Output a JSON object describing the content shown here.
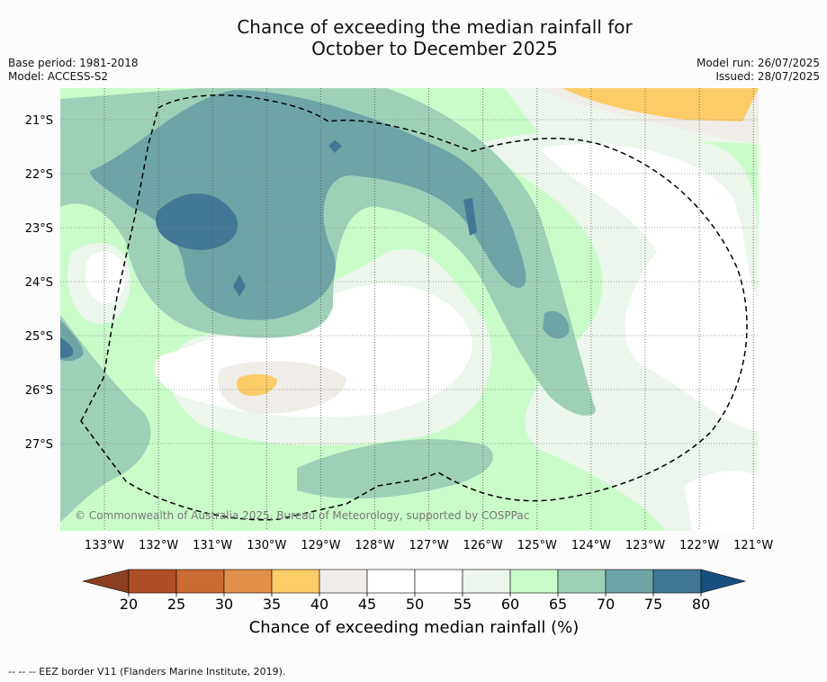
{
  "title": {
    "line1": "Chance of exceeding the median rainfall for",
    "line2": "October to December 2025"
  },
  "meta_left": {
    "base_period": "Base period: 1981-2018",
    "model": "Model: ACCESS-S2"
  },
  "meta_right": {
    "model_run": "Model run: 26/07/2025",
    "issued": "Issued: 28/07/2025"
  },
  "map": {
    "lat_labels": [
      "21°S",
      "22°S",
      "23°S",
      "24°S",
      "25°S",
      "26°S",
      "27°S"
    ],
    "lon_labels": [
      "133°W",
      "132°W",
      "131°W",
      "130°W",
      "129°W",
      "128°W",
      "127°W",
      "126°W",
      "125°W",
      "124°W",
      "123°W",
      "122°W",
      "121°W"
    ],
    "copyright": "© Commonwealth of Australia 2025, Bureau of Meteorology, supported by COSPPac",
    "background_color": "#c9fcc9"
  },
  "colorbar": {
    "ticks": [
      "20",
      "25",
      "30",
      "35",
      "40",
      "45",
      "50",
      "55",
      "60",
      "65",
      "70",
      "75",
      "80"
    ],
    "colors": [
      "#b04e27",
      "#cc6a34",
      "#e09048",
      "#fdcc66",
      "#f0ede9",
      "#ffffff",
      "#ffffff",
      "#ecf6ec",
      "#c9fcc9",
      "#9ed0b8",
      "#6fa4a6",
      "#427896"
    ],
    "under_color": "#8c3e20",
    "over_color": "#164f82",
    "label": "Chance of exceeding median rainfall (%)"
  },
  "footnote": "--  --  -- EEZ border V11 (Flanders Marine Institute, 2019)."
}
